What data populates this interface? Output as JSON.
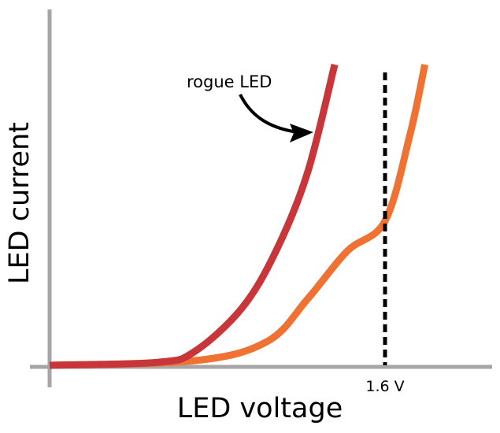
{
  "chart_data": {
    "type": "line",
    "xlabel": "LED voltage",
    "ylabel": "LED current",
    "x_unit": "V",
    "xlim": [
      0,
      2.1
    ],
    "ylim": [
      0,
      1.1
    ],
    "grid": false,
    "axis_color": "#a6a6a6",
    "series": [
      {
        "name": "rogue LED",
        "color": "#c8363a",
        "x": [
          0,
          0.515,
          0.69,
          0.917,
          1.08,
          1.23,
          1.36
        ],
        "y": [
          0,
          0.01,
          0.045,
          0.19,
          0.38,
          0.64,
          1.0
        ]
      },
      {
        "color": "#ef7232",
        "x": [
          0,
          0.7,
          1.04,
          1.23,
          1.42,
          1.6,
          1.72,
          1.79
        ],
        "y": [
          0,
          0.016,
          0.08,
          0.22,
          0.38,
          0.48,
          0.77,
          1.0
        ]
      }
    ],
    "annotations": [
      {
        "type": "vline",
        "x": 1.6,
        "label": "1.6 V",
        "style": "dashed",
        "color": "#000000"
      },
      {
        "type": "arrow",
        "text": "rogue LED",
        "points_to": "rogue LED"
      }
    ]
  }
}
